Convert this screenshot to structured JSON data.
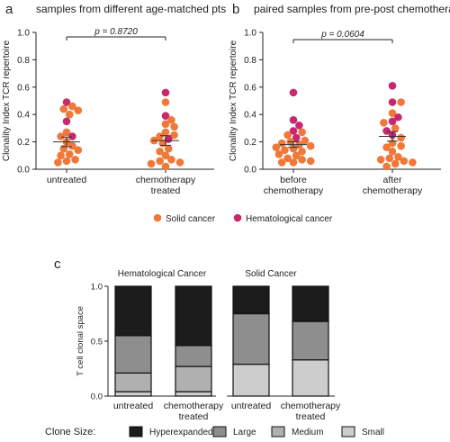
{
  "panel_letters": {
    "a": "a",
    "b": "b",
    "c": "c"
  },
  "legend_dots": {
    "items": [
      {
        "label": "Solid cancer",
        "color": "#f07838"
      },
      {
        "label": "Hematological cancer",
        "color": "#c8286e"
      }
    ]
  },
  "colors": {
    "solid": "#f07838",
    "hematological": "#c8286e",
    "hyperexpanded": "#1c1c1c",
    "large": "#8e8e8e",
    "medium": "#b0b0b0",
    "small": "#cdcdcd"
  },
  "chart_data": [
    {
      "id": "a",
      "type": "scatter",
      "title": "samples from different age-matched pts",
      "ylabel": "Clonality Index TCR repertoire",
      "ylim": [
        0,
        1.0
      ],
      "yticks": [
        "0.0",
        "0.2",
        "0.4",
        "0.6",
        "0.8",
        "1.0"
      ],
      "categories": [
        "untreated",
        "chemotherapy\ntreated"
      ],
      "groups": [
        {
          "name": "untreated",
          "mean": 0.2,
          "sem": [
            0.165,
            0.235
          ],
          "points": [
            {
              "y": 0.49,
              "type": "hematological"
            },
            {
              "y": 0.46,
              "type": "solid"
            },
            {
              "y": 0.44,
              "type": "solid"
            },
            {
              "y": 0.43,
              "type": "solid"
            },
            {
              "y": 0.4,
              "type": "solid"
            },
            {
              "y": 0.35,
              "type": "hematological"
            },
            {
              "y": 0.27,
              "type": "solid"
            },
            {
              "y": 0.24,
              "type": "hematological"
            },
            {
              "y": 0.24,
              "type": "solid"
            },
            {
              "y": 0.2,
              "type": "solid"
            },
            {
              "y": 0.17,
              "type": "solid"
            },
            {
              "y": 0.15,
              "type": "solid"
            },
            {
              "y": 0.14,
              "type": "solid"
            },
            {
              "y": 0.11,
              "type": "solid"
            },
            {
              "y": 0.1,
              "type": "solid"
            },
            {
              "y": 0.07,
              "type": "solid"
            },
            {
              "y": 0.06,
              "type": "solid"
            },
            {
              "y": 0.05,
              "type": "solid"
            }
          ]
        },
        {
          "name": "chemotherapy treated",
          "mean": 0.21,
          "sem": [
            0.175,
            0.245
          ],
          "points": [
            {
              "y": 0.56,
              "type": "hematological"
            },
            {
              "y": 0.49,
              "type": "solid"
            },
            {
              "y": 0.39,
              "type": "hematological"
            },
            {
              "y": 0.36,
              "type": "solid"
            },
            {
              "y": 0.33,
              "type": "solid"
            },
            {
              "y": 0.31,
              "type": "solid"
            },
            {
              "y": 0.27,
              "type": "solid"
            },
            {
              "y": 0.25,
              "type": "solid"
            },
            {
              "y": 0.24,
              "type": "solid"
            },
            {
              "y": 0.22,
              "type": "hematological"
            },
            {
              "y": 0.21,
              "type": "solid"
            },
            {
              "y": 0.19,
              "type": "solid"
            },
            {
              "y": 0.15,
              "type": "solid"
            },
            {
              "y": 0.13,
              "type": "solid"
            },
            {
              "y": 0.1,
              "type": "solid"
            },
            {
              "y": 0.07,
              "type": "solid"
            },
            {
              "y": 0.06,
              "type": "solid"
            },
            {
              "y": 0.05,
              "type": "solid"
            },
            {
              "y": 0.04,
              "type": "solid"
            },
            {
              "y": 0.02,
              "type": "solid"
            }
          ]
        }
      ],
      "pvalue": "p = 0.8720"
    },
    {
      "id": "b",
      "type": "scatter",
      "title": "paired samples from pre-post chemotherapy",
      "ylabel": "Clonality Index TCR repertoire",
      "ylim": [
        0,
        1.0
      ],
      "yticks": [
        "0.0",
        "0.2",
        "0.4",
        "0.6",
        "0.8",
        "1.0"
      ],
      "categories": [
        "before\nchemotherapy",
        "after\nchemotherapy"
      ],
      "groups": [
        {
          "name": "before chemotherapy",
          "mean": 0.18,
          "sem": [
            0.16,
            0.2
          ],
          "points": [
            {
              "y": 0.56,
              "type": "hematological"
            },
            {
              "y": 0.36,
              "type": "hematological"
            },
            {
              "y": 0.32,
              "type": "hematological"
            },
            {
              "y": 0.28,
              "type": "hematological"
            },
            {
              "y": 0.27,
              "type": "solid"
            },
            {
              "y": 0.25,
              "type": "solid"
            },
            {
              "y": 0.23,
              "type": "hematological"
            },
            {
              "y": 0.21,
              "type": "solid"
            },
            {
              "y": 0.2,
              "type": "solid"
            },
            {
              "y": 0.19,
              "type": "solid"
            },
            {
              "y": 0.18,
              "type": "solid"
            },
            {
              "y": 0.17,
              "type": "solid"
            },
            {
              "y": 0.16,
              "type": "solid"
            },
            {
              "y": 0.15,
              "type": "solid"
            },
            {
              "y": 0.14,
              "type": "solid"
            },
            {
              "y": 0.13,
              "type": "solid"
            },
            {
              "y": 0.11,
              "type": "solid"
            },
            {
              "y": 0.1,
              "type": "solid"
            },
            {
              "y": 0.08,
              "type": "solid"
            },
            {
              "y": 0.07,
              "type": "solid"
            },
            {
              "y": 0.06,
              "type": "solid"
            },
            {
              "y": 0.05,
              "type": "solid"
            },
            {
              "y": 0.05,
              "type": "solid"
            }
          ]
        },
        {
          "name": "after chemotherapy",
          "mean": 0.24,
          "sem": [
            0.205,
            0.275
          ],
          "points": [
            {
              "y": 0.61,
              "type": "hematological"
            },
            {
              "y": 0.49,
              "type": "hematological"
            },
            {
              "y": 0.49,
              "type": "solid"
            },
            {
              "y": 0.41,
              "type": "solid"
            },
            {
              "y": 0.38,
              "type": "hematological"
            },
            {
              "y": 0.35,
              "type": "hematological"
            },
            {
              "y": 0.34,
              "type": "solid"
            },
            {
              "y": 0.3,
              "type": "solid"
            },
            {
              "y": 0.28,
              "type": "hematological"
            },
            {
              "y": 0.25,
              "type": "hematological"
            },
            {
              "y": 0.23,
              "type": "solid"
            },
            {
              "y": 0.19,
              "type": "solid"
            },
            {
              "y": 0.17,
              "type": "solid"
            },
            {
              "y": 0.16,
              "type": "solid"
            },
            {
              "y": 0.13,
              "type": "solid"
            },
            {
              "y": 0.09,
              "type": "solid"
            },
            {
              "y": 0.08,
              "type": "solid"
            },
            {
              "y": 0.07,
              "type": "solid"
            },
            {
              "y": 0.06,
              "type": "solid"
            },
            {
              "y": 0.05,
              "type": "solid"
            },
            {
              "y": 0.04,
              "type": "solid"
            },
            {
              "y": 0.02,
              "type": "solid"
            }
          ]
        }
      ],
      "pvalue": "p = 0.0604"
    },
    {
      "id": "c",
      "type": "bar",
      "stacked": true,
      "ylabel": "T cell clonal space",
      "ylim": [
        0,
        1.0
      ],
      "yticks": [
        "0.0",
        "0.5",
        "1.0"
      ],
      "group_titles": [
        "Hematological Cancer",
        "Solid Cancer"
      ],
      "categories": [
        "untreated",
        "chemotherapy\ntreated",
        "untreated",
        "chemotherapy\ntreated"
      ],
      "series": [
        {
          "name": "Small",
          "values": [
            0.04,
            0.04,
            0.29,
            0.33
          ]
        },
        {
          "name": "Medium",
          "values": [
            0.17,
            0.23,
            0.0,
            0.0
          ]
        },
        {
          "name": "Large",
          "values": [
            0.34,
            0.19,
            0.46,
            0.35
          ]
        },
        {
          "name": "Hyperexpanded",
          "values": [
            0.45,
            0.54,
            0.25,
            0.32
          ]
        }
      ],
      "legend_title": "Clone Size:",
      "legend": [
        "Hyperexpanded",
        "Large",
        "Medium",
        "Small"
      ]
    }
  ]
}
